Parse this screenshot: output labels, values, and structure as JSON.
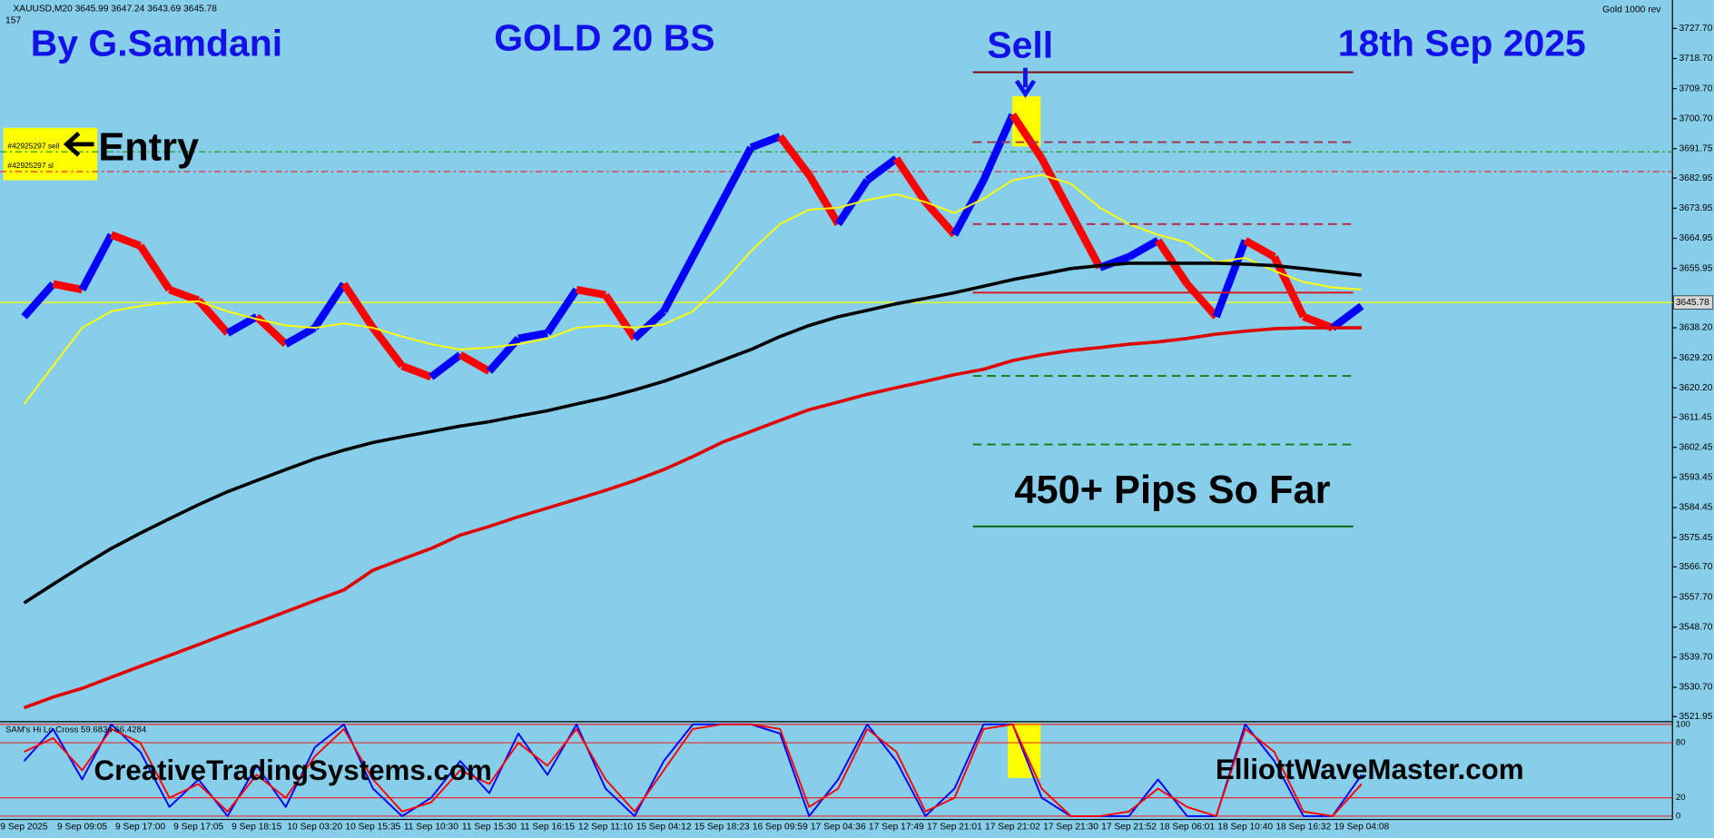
{
  "chart_data": [
    {
      "type": "line",
      "header": "XAUUSD,M20  3645.99 3647.24 3643.69 3645.78",
      "header_count": 157,
      "symbol_label": "Gold 1000 rev",
      "author": "By G.Samdani",
      "title": "GOLD 20 BS",
      "signal": "Sell",
      "date": "18th Sep 2025",
      "entry_label": "Entry",
      "result": "450+ Pips So Far",
      "orders": [
        "#42925297 sell",
        "#42925297 sl"
      ],
      "site_left": "CreativeTradingSystems.com",
      "site_right": "ElliottWaveMaster.com",
      "categories": [
        "9 Sep 2025",
        null,
        "9 Sep 09:05",
        null,
        "9 Sep 17:00",
        null,
        "9 Sep 17:05",
        null,
        "9 Sep 18:15",
        null,
        "10 Sep 03:20",
        null,
        "10 Sep 15:35",
        null,
        "11 Sep 10:30",
        null,
        "11 Sep 15:30",
        null,
        "11 Sep 16:15",
        null,
        "12 Sep 11:10",
        null,
        "15 Sep 04:12",
        null,
        "15 Sep 18:23",
        null,
        "16 Sep 09:59",
        null,
        "17 Sep 04:36",
        null,
        "17 Sep 17:49",
        null,
        "17 Sep 21:01",
        null,
        "17 Sep 21:02",
        null,
        "17 Sep 21:30",
        null,
        "17 Sep 21:52",
        null,
        "18 Sep 06:01",
        null,
        "18 Sep 10:40",
        null,
        "18 Sep 16:32",
        null,
        "19 Sep 04:08"
      ],
      "series": [
        {
          "up_color": "#0000ff",
          "down_color": "#ff0000",
          "values": [
            3641.5,
            3651.3,
            3649.6,
            3666.0,
            3662.7,
            3649.6,
            3646.4,
            3636.6,
            3641.5,
            3633.3,
            3638.2,
            3651.3,
            3638.2,
            3626.8,
            3623.5,
            3630.1,
            3625.2,
            3635.0,
            3636.6,
            3649.6,
            3648.0,
            3635.0,
            3643.1,
            3659.4,
            3675.8,
            3692.1,
            3695.4,
            3683.9,
            3669.2,
            3682.3,
            3688.8,
            3675.8,
            3666.0,
            3682.3,
            3701.9,
            3688.8,
            3672.5,
            3656.2,
            3659.4,
            3664.3,
            3651.3,
            3641.5,
            3664.3,
            3659.4,
            3641.5,
            3638.2,
            3644.7
          ]
        },
        {
          "color": "#ffff00",
          "values": [
            3615.4,
            3626.8,
            3638.2,
            3643.1,
            3644.7,
            3645.7,
            3646.1,
            3643.1,
            3640.8,
            3638.9,
            3638.2,
            3639.5,
            3638.2,
            3635.6,
            3633.3,
            3631.7,
            3632.3,
            3633.3,
            3635.0,
            3638.2,
            3638.9,
            3638.2,
            3639.2,
            3643.1,
            3651.3,
            3661.1,
            3669.2,
            3673.5,
            3674.1,
            3676.4,
            3678.1,
            3675.8,
            3672.5,
            3676.8,
            3682.3,
            3683.9,
            3681.3,
            3674.1,
            3669.2,
            3666.0,
            3663.7,
            3657.8,
            3659.1,
            3655.2,
            3651.9,
            3650.3,
            3649.6
          ]
        },
        {
          "color": "#000000",
          "values": [
            3555.9,
            3561.5,
            3567.0,
            3572.2,
            3576.8,
            3581.1,
            3585.3,
            3589.2,
            3592.5,
            3595.8,
            3599.0,
            3601.6,
            3603.9,
            3605.6,
            3607.2,
            3608.8,
            3610.1,
            3611.8,
            3613.4,
            3615.4,
            3617.3,
            3619.6,
            3622.2,
            3625.2,
            3628.4,
            3631.7,
            3635.6,
            3638.9,
            3641.5,
            3643.4,
            3645.4,
            3647.0,
            3648.7,
            3650.6,
            3652.6,
            3654.2,
            3655.9,
            3656.8,
            3657.5,
            3657.5,
            3657.5,
            3657.5,
            3657.2,
            3656.8,
            3655.9,
            3654.9,
            3653.9
          ]
        },
        {
          "color": "#e00000",
          "values": [
            3524.6,
            3527.8,
            3530.4,
            3533.7,
            3537.0,
            3540.2,
            3543.5,
            3546.8,
            3550.0,
            3553.3,
            3556.6,
            3559.8,
            3565.7,
            3569.0,
            3572.2,
            3576.2,
            3578.8,
            3581.7,
            3584.3,
            3586.9,
            3589.6,
            3592.5,
            3595.8,
            3599.7,
            3603.9,
            3607.2,
            3610.5,
            3613.7,
            3616.0,
            3618.3,
            3620.3,
            3622.2,
            3624.2,
            3625.8,
            3628.4,
            3630.1,
            3631.4,
            3632.3,
            3633.3,
            3634.0,
            3635.0,
            3636.3,
            3637.2,
            3637.9,
            3638.2,
            3638.2,
            3638.2
          ]
        }
      ],
      "ylim": [
        3520.6,
        3736.2
      ],
      "yticks": [
        {
          "value": 3727.7,
          "label": "3727.70"
        },
        {
          "value": 3718.7,
          "label": "3718.70"
        },
        {
          "value": 3709.7,
          "label": "3709.70"
        },
        {
          "value": 3700.7,
          "label": "3700.70"
        },
        3691.75,
        3682.95,
        3673.95,
        3664.95,
        3655.95,
        {
          "value": 3638.2,
          "label": "3638.20"
        },
        {
          "value": 3629.2,
          "label": "3629.20"
        },
        {
          "value": 3620.2,
          "label": "3620.20"
        },
        3611.45,
        3602.45,
        3593.45,
        3584.45,
        3575.45,
        {
          "value": 3566.7,
          "label": "3566.70"
        },
        {
          "value": 3557.7,
          "label": "3557.70"
        },
        {
          "value": 3548.7,
          "label": "3548.70"
        },
        {
          "value": 3539.7,
          "label": "3539.70"
        },
        {
          "value": 3530.7,
          "label": "3530.70"
        },
        3521.95
      ],
      "current_price": 3645.78,
      "current_price_color": "#ffff00",
      "trade_levels": [
        {
          "value": 3714.6,
          "color": "#800000",
          "dash": false
        },
        {
          "value": 3693.7,
          "color": "#a0304a",
          "dash": true
        },
        {
          "value": 3669.2,
          "color": "#c02040",
          "dash": true
        },
        {
          "value": 3648.7,
          "color": "#e01010",
          "dash": false
        },
        {
          "value": 3623.8,
          "color": "#108010",
          "dash": true
        },
        {
          "value": 3603.3,
          "color": "#108010",
          "dash": true
        },
        {
          "value": 3578.8,
          "color": "#006000",
          "dash": false
        }
      ],
      "order_levels": [
        {
          "value": 3690.8,
          "color": "#20a020"
        },
        {
          "value": 3684.9,
          "color": "#e03030"
        }
      ]
    },
    {
      "type": "line",
      "title": "SAM's Hi Lo Cross 59.6834 66.4284",
      "series": [
        {
          "color": "#0000ff",
          "values": [
            60,
            95,
            40,
            100,
            70,
            10,
            40,
            0,
            55,
            10,
            75,
            100,
            30,
            0,
            20,
            60,
            25,
            90,
            45,
            100,
            30,
            0,
            60,
            100,
            100,
            100,
            90,
            0,
            40,
            100,
            60,
            0,
            30,
            100,
            100,
            20,
            0,
            0,
            0,
            40,
            0,
            0,
            100,
            60,
            0,
            0,
            45
          ]
        },
        {
          "color": "#ff0000",
          "values": [
            70,
            85,
            50,
            95,
            80,
            20,
            35,
            5,
            45,
            20,
            65,
            95,
            40,
            5,
            15,
            50,
            35,
            80,
            55,
            95,
            40,
            5,
            50,
            95,
            100,
            100,
            95,
            10,
            30,
            95,
            70,
            5,
            20,
            95,
            100,
            30,
            0,
            0,
            5,
            30,
            10,
            0,
            95,
            70,
            5,
            0,
            35
          ]
        }
      ],
      "ylim": [
        0,
        100
      ],
      "yticks": [
        0,
        20,
        80,
        100
      ],
      "level_color": "#ff0000"
    }
  ]
}
